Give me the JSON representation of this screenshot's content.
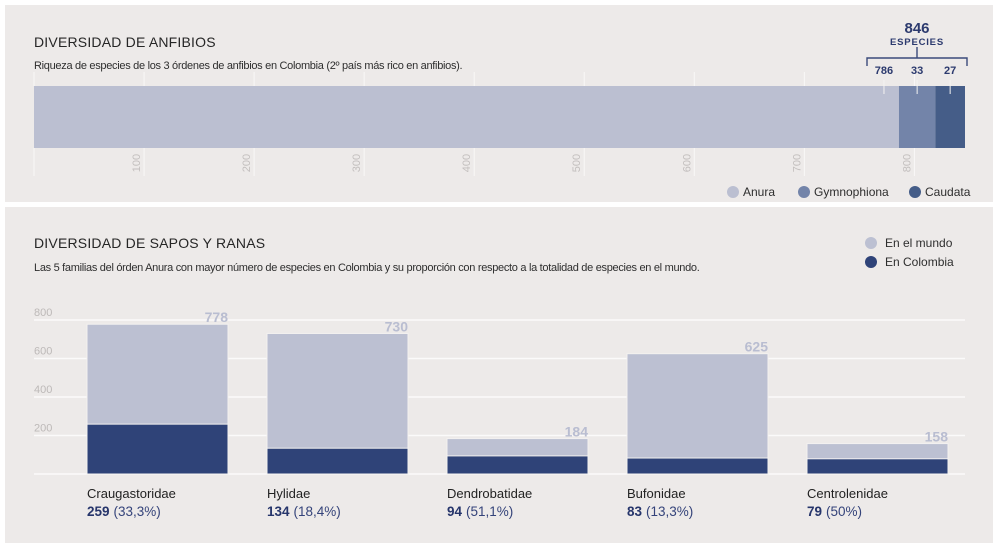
{
  "anfibios": {
    "title": "DIVERSIDAD DE ANFIBIOS",
    "subtitle": "Riqueza de especies de los 3 órdenes de anfibios en Colombia (2º país más rico en anfibios).",
    "total_value": "846",
    "total_label": "ESPECIES",
    "legend": [
      {
        "label": "Anura",
        "color": "#bbbfd1"
      },
      {
        "label": "Gymnophiona",
        "color": "#7384a9"
      },
      {
        "label": "Caudata",
        "color": "#455d88"
      }
    ]
  },
  "sapos": {
    "title": "DIVERSIDAD DE SAPOS Y RANAS",
    "subtitle": "Las 5 familias del órden Anura con mayor número de especies en Colombia y su proporción con respecto a la totalidad de especies en el mundo.",
    "legend": [
      {
        "label": "En el mundo",
        "color": "#bcc0d2"
      },
      {
        "label": "En Colombia",
        "color": "#2f4378"
      }
    ]
  },
  "chart_data": [
    {
      "type": "bar",
      "orientation": "horizontal",
      "stacked": true,
      "title": "DIVERSIDAD DE ANFIBIOS",
      "subtitle": "Riqueza de especies de los 3 órdenes de anfibios en Colombia (2º país más rico en anfibios).",
      "series": [
        {
          "name": "Anura",
          "values": [
            786
          ],
          "label": "786",
          "color": "#bbbfd1"
        },
        {
          "name": "Gymnophiona",
          "values": [
            33
          ],
          "label": "33",
          "color": "#7384a9"
        },
        {
          "name": "Caudata",
          "values": [
            27
          ],
          "label": "27",
          "color": "#455d88"
        }
      ],
      "total": 846,
      "total_annotation": "846 ESPECIES",
      "xlim": [
        0,
        846
      ],
      "xticks": [
        100,
        200,
        300,
        400,
        500,
        600,
        700,
        800
      ],
      "xtick_labels": [
        "100",
        "200",
        "300",
        "400",
        "500",
        "600",
        "700",
        "800"
      ],
      "xlabel": "",
      "ylabel": "",
      "grid": false,
      "legend_position": "bottom-right"
    },
    {
      "type": "bar",
      "orientation": "vertical",
      "stacked": false,
      "overlapped": true,
      "title": "DIVERSIDAD DE SAPOS Y RANAS",
      "categories": [
        "Craugastoridae",
        "Hylidae",
        "Dendrobatidae",
        "Bufonidae",
        "Centrolenidae"
      ],
      "series": [
        {
          "name": "En el mundo",
          "values": [
            778,
            730,
            184,
            625,
            158
          ],
          "color": "#bcc0d2"
        },
        {
          "name": "En Colombia",
          "values": [
            259,
            134,
            94,
            83,
            79
          ],
          "color": "#2f4378"
        }
      ],
      "world_labels": [
        "778",
        "730",
        "184",
        "625",
        "158"
      ],
      "colombia_labels": [
        "259",
        "134",
        "94",
        "83",
        "79"
      ],
      "percent_labels": [
        "(33,3%)",
        "(18,4%)",
        "(51,1%)",
        "(13,3%)",
        "(50%)"
      ],
      "ylim": [
        0,
        800
      ],
      "yticks": [
        200,
        400,
        600,
        800
      ],
      "ytick_labels": [
        "200",
        "400",
        "600",
        "800"
      ],
      "xlabel": "",
      "ylabel": "",
      "grid": true,
      "legend_position": "top-right"
    }
  ]
}
